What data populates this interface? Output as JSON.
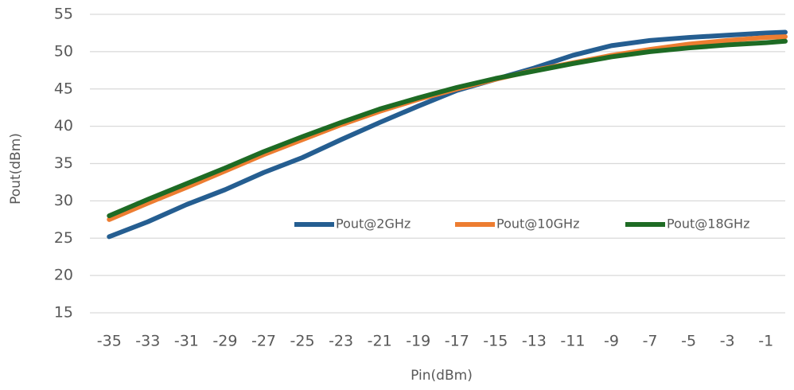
{
  "chart_data": {
    "type": "line",
    "xlabel": "Pin(dBm)",
    "ylabel": "Pout(dBm)",
    "x": [
      -35,
      -33,
      -31,
      -29,
      -27,
      -25,
      -23,
      -21,
      -19,
      -17,
      -15,
      -13,
      -11,
      -9,
      -7,
      -5,
      -3,
      -1,
      0
    ],
    "series": [
      {
        "name": "Pout@2GHz",
        "color": "#255e91",
        "values": [
          25.2,
          27.2,
          29.5,
          31.5,
          33.8,
          35.8,
          38.2,
          40.5,
          42.7,
          44.8,
          46.3,
          47.8,
          49.5,
          50.8,
          51.5,
          51.9,
          52.2,
          52.5,
          52.6
        ]
      },
      {
        "name": "Pout@10GHz",
        "color": "#ed7d31",
        "values": [
          27.5,
          29.7,
          31.8,
          34,
          36.2,
          38.2,
          40.2,
          42,
          43.6,
          45,
          46.3,
          47.5,
          48.5,
          49.5,
          50.3,
          51,
          51.5,
          51.9,
          52
        ]
      },
      {
        "name": "Pout@18GHz",
        "color": "#1e6b24",
        "values": [
          28,
          30.2,
          32.3,
          34.4,
          36.6,
          38.6,
          40.5,
          42.3,
          43.8,
          45.2,
          46.4,
          47.4,
          48.4,
          49.3,
          50,
          50.5,
          50.9,
          51.2,
          51.4
        ]
      }
    ],
    "xlim": [
      -36,
      0
    ],
    "xticks": [
      -35,
      -33,
      -31,
      -29,
      -27,
      -25,
      -23,
      -21,
      -19,
      -17,
      -15,
      -13,
      -11,
      -9,
      -7,
      -5,
      -3,
      -1
    ],
    "ylim": [
      15,
      55
    ],
    "yticks": [
      15,
      20,
      25,
      30,
      35,
      40,
      45,
      50,
      55
    ],
    "grid": true,
    "legend": "center right"
  }
}
